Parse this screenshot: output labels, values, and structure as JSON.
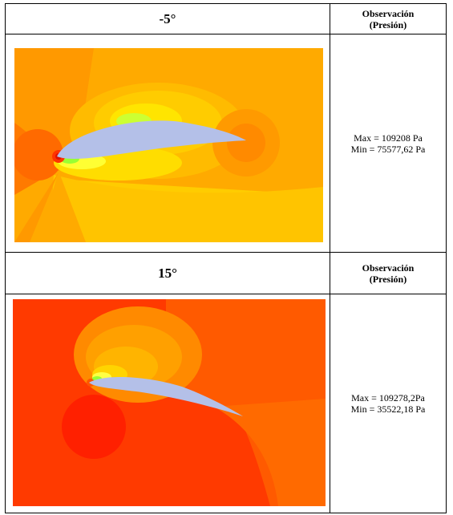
{
  "rows": [
    {
      "angle": "-5°",
      "observacion": "Observación",
      "presion": "(Presión)",
      "max": "Max = 109208 Pa",
      "min": "Min = 75577,62 Pa"
    },
    {
      "angle": "15°",
      "observacion": "Observación",
      "presion": "(Presión)",
      "max": "Max = 109278,2Pa",
      "min": "Min = 35522,18 Pa"
    }
  ],
  "colors": {
    "contour_orange_dark": "#ff6600",
    "contour_orange": "#ff9900",
    "contour_yellow": "#ffcc00",
    "contour_light_yellow": "#ffff33",
    "contour_green": "#99ff33",
    "contour_red": "#ff2200",
    "airfoil": "#b4c0e8"
  }
}
